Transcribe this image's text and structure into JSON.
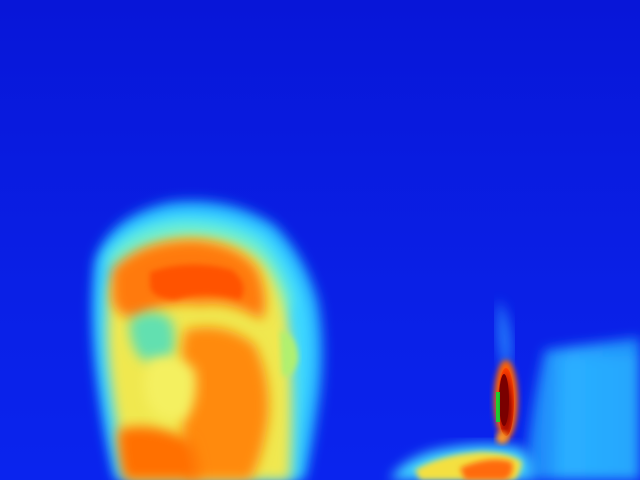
{
  "image": {
    "kind": "thermal-camera-frame",
    "palette": "rainbow",
    "subjects": [
      "person-head",
      "candle-flame",
      "candle"
    ],
    "colors": {
      "background": "#0a1ee0",
      "cold": "#1038ff",
      "cool": "#30c8ff",
      "warm": "#f4e040",
      "hot": "#ff5a00",
      "hottest": "#a00000"
    }
  }
}
